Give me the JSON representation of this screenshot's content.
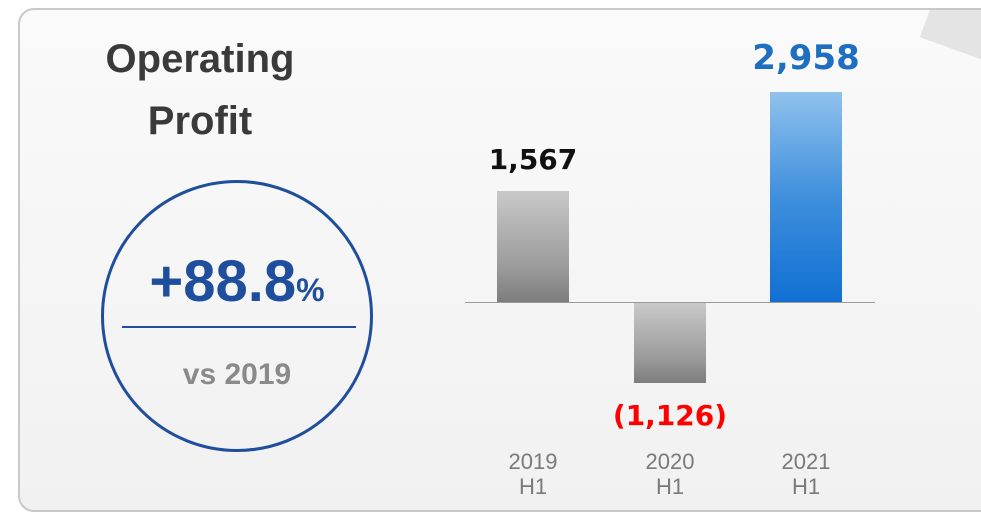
{
  "chart_data": {
    "type": "bar",
    "title": "Operating Profit",
    "categories": [
      [
        "2019",
        "H1"
      ],
      [
        "2020",
        "H1"
      ],
      [
        "2021",
        "H1"
      ]
    ],
    "values": [
      1567,
      -1126,
      2958
    ],
    "value_labels": [
      "1,567",
      "(1,126)",
      "2,958"
    ],
    "colors": [
      "gray",
      "gray",
      "blue"
    ],
    "value_label_colors": [
      "#111111",
      "#ff0000",
      "#1f6fc0"
    ],
    "annotation": {
      "change": "+88.8",
      "unit": "%",
      "comparison": "vs 2019"
    }
  }
}
